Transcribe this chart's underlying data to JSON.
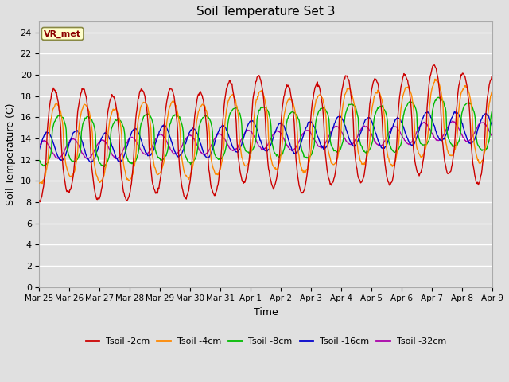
{
  "title": "Soil Temperature Set 3",
  "xlabel": "Time",
  "ylabel": "Soil Temperature (C)",
  "ylim": [
    0,
    25
  ],
  "yticks": [
    0,
    2,
    4,
    6,
    8,
    10,
    12,
    14,
    16,
    18,
    20,
    22,
    24
  ],
  "x_labels": [
    "Mar 25",
    "Mar 26",
    "Mar 27",
    "Mar 28",
    "Mar 29",
    "Mar 30",
    "Mar 31",
    "Apr 1",
    "Apr 2",
    "Apr 3",
    "Apr 4",
    "Apr 5",
    "Apr 6",
    "Apr 7",
    "Apr 8",
    "Apr 9"
  ],
  "background_color": "#e0e0e0",
  "plot_bg_color": "#e0e0e0",
  "grid_color": "#ffffff",
  "legend_label": "VR_met",
  "series_colors": {
    "Tsoil -2cm": "#cc0000",
    "Tsoil -4cm": "#ff8800",
    "Tsoil -8cm": "#00bb00",
    "Tsoil -16cm": "#0000cc",
    "Tsoil -32cm": "#aa00aa"
  },
  "n_days": 15.5,
  "points_per_day": 48,
  "figwidth": 6.4,
  "figheight": 4.8,
  "dpi": 100
}
